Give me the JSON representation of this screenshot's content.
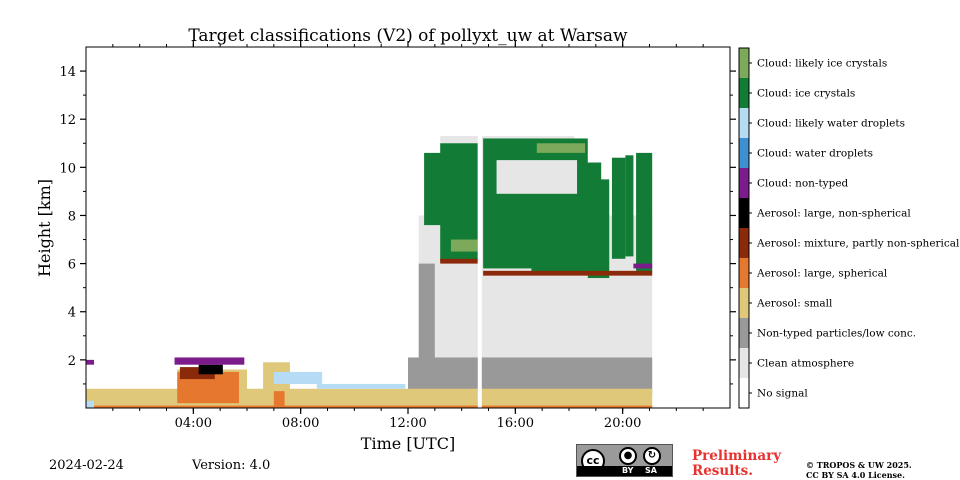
{
  "chart_data": {
    "type": "heatmap",
    "title": "Target classifications (V2) of pollyxt_uw at Warsaw",
    "xlabel": "Time [UTC]",
    "ylabel": "Height [km]",
    "x_range_hours": [
      0,
      24
    ],
    "y_range_km": [
      0,
      15
    ],
    "xticks": [
      {
        "hour": 4,
        "label": "04:00"
      },
      {
        "hour": 8,
        "label": "08:00"
      },
      {
        "hour": 12,
        "label": "12:00"
      },
      {
        "hour": 16,
        "label": "16:00"
      },
      {
        "hour": 20,
        "label": "20:00"
      }
    ],
    "yticks": [
      {
        "km": 2,
        "label": "2"
      },
      {
        "km": 4,
        "label": "4"
      },
      {
        "km": 6,
        "label": "6"
      },
      {
        "km": 8,
        "label": "8"
      },
      {
        "km": 10,
        "label": "10"
      },
      {
        "km": 12,
        "label": "12"
      },
      {
        "km": 14,
        "label": "14"
      }
    ],
    "classes": [
      {
        "label": "No signal",
        "color": "#ffffff"
      },
      {
        "label": "Clean atmosphere",
        "color": "#e6e6e6"
      },
      {
        "label": "Non-typed particles/low conc.",
        "color": "#999999"
      },
      {
        "label": "Aerosol: small",
        "color": "#dfc87a"
      },
      {
        "label": "Aerosol: large, spherical",
        "color": "#e6772f"
      },
      {
        "label": "Aerosol: mixture, partly non-spherical",
        "color": "#8a2a0b"
      },
      {
        "label": "Aerosol: large, non-spherical",
        "color": "#000000"
      },
      {
        "label": "Cloud: non-typed",
        "color": "#7b1b8c"
      },
      {
        "label": "Cloud: water droplets",
        "color": "#3d8fd1"
      },
      {
        "label": "Cloud: likely water droplets",
        "color": "#b5dbf5"
      },
      {
        "label": "Cloud: ice crystals",
        "color": "#127b36"
      },
      {
        "label": "Cloud: likely ice crystals",
        "color": "#7daa5a"
      }
    ],
    "regions": [
      {
        "cls": 1,
        "t0": 12.4,
        "t1": 21.1,
        "h0": 0.9,
        "h1": 8.0
      },
      {
        "cls": 1,
        "t0": 13.2,
        "t1": 18.2,
        "h0": 8.0,
        "h1": 11.3
      },
      {
        "cls": 2,
        "t0": 12.0,
        "t1": 21.1,
        "h0": 0.5,
        "h1": 2.1
      },
      {
        "cls": 2,
        "t0": 12.4,
        "t1": 13.0,
        "h0": 2.0,
        "h1": 6.0
      },
      {
        "cls": 3,
        "t0": 0.0,
        "t1": 21.1,
        "h0": 0.05,
        "h1": 0.8
      },
      {
        "cls": 3,
        "t0": 6.6,
        "t1": 7.6,
        "h0": 0.6,
        "h1": 1.9
      },
      {
        "cls": 3,
        "t0": 3.4,
        "t1": 6.0,
        "h0": 0.4,
        "h1": 1.6
      },
      {
        "cls": 4,
        "t0": 3.4,
        "t1": 5.7,
        "h0": 0.2,
        "h1": 1.5
      },
      {
        "cls": 4,
        "t0": 7.0,
        "t1": 7.4,
        "h0": 0.05,
        "h1": 0.7
      },
      {
        "cls": 4,
        "t0": 0.0,
        "t1": 21.1,
        "h0": 0.0,
        "h1": 0.1
      },
      {
        "cls": 5,
        "t0": 3.5,
        "t1": 4.8,
        "h0": 1.2,
        "h1": 1.7
      },
      {
        "cls": 6,
        "t0": 4.2,
        "t1": 5.1,
        "h0": 1.4,
        "h1": 1.8
      },
      {
        "cls": 7,
        "t0": 3.3,
        "t1": 5.9,
        "h0": 1.8,
        "h1": 2.1
      },
      {
        "cls": 7,
        "t0": 0.0,
        "t1": 0.3,
        "h0": 1.8,
        "h1": 2.0
      },
      {
        "cls": 9,
        "t0": 0.0,
        "t1": 0.3,
        "h0": 0.0,
        "h1": 0.3
      },
      {
        "cls": 9,
        "t0": 7.0,
        "t1": 8.8,
        "h0": 1.0,
        "h1": 1.5
      },
      {
        "cls": 9,
        "t0": 8.6,
        "t1": 11.9,
        "h0": 0.8,
        "h1": 1.0
      },
      {
        "cls": 10,
        "t0": 13.2,
        "t1": 14.6,
        "h0": 6.1,
        "h1": 11.0
      },
      {
        "cls": 10,
        "t0": 12.6,
        "t1": 13.4,
        "h0": 7.6,
        "h1": 10.6
      },
      {
        "cls": 10,
        "t0": 14.8,
        "t1": 18.7,
        "h0": 5.8,
        "h1": 11.2
      },
      {
        "cls": 10,
        "t0": 16.6,
        "t1": 19.2,
        "h0": 5.6,
        "h1": 10.2
      },
      {
        "cls": 10,
        "t0": 18.7,
        "t1": 19.5,
        "h0": 5.4,
        "h1": 9.5
      },
      {
        "cls": 10,
        "t0": 19.6,
        "t1": 20.1,
        "h0": 6.2,
        "h1": 10.4
      },
      {
        "cls": 10,
        "t0": 20.1,
        "t1": 20.4,
        "h0": 6.3,
        "h1": 10.5
      },
      {
        "cls": 10,
        "t0": 20.5,
        "t1": 21.1,
        "h0": 5.6,
        "h1": 10.6
      },
      {
        "cls": 1,
        "t0": 15.3,
        "t1": 18.3,
        "h0": 8.9,
        "h1": 10.3
      },
      {
        "cls": 11,
        "t0": 13.6,
        "t1": 14.6,
        "h0": 6.5,
        "h1": 7.0
      },
      {
        "cls": 11,
        "t0": 16.8,
        "t1": 18.6,
        "h0": 10.6,
        "h1": 11.0
      },
      {
        "cls": 5,
        "t0": 14.8,
        "t1": 21.1,
        "h0": 5.5,
        "h1": 5.7
      },
      {
        "cls": 5,
        "t0": 13.2,
        "t1": 14.6,
        "h0": 6.0,
        "h1": 6.2
      },
      {
        "cls": 7,
        "t0": 20.4,
        "t1": 21.1,
        "h0": 5.8,
        "h1": 6.0
      },
      {
        "cls": 0,
        "t0": 14.6,
        "t1": 14.75,
        "h0": 0.0,
        "h1": 15.0
      }
    ]
  },
  "footer": {
    "date": "2024-02-24",
    "version": "Version: 4.0",
    "preliminary_line1": "Preliminary",
    "preliminary_line2": "Results.",
    "copyright_line1": "© TROPOS & UW 2025.",
    "copyright_line2": "CC BY SA 4.0 License.",
    "badge_cc": "cc",
    "badge_by": "BY",
    "badge_sa": "SA"
  }
}
